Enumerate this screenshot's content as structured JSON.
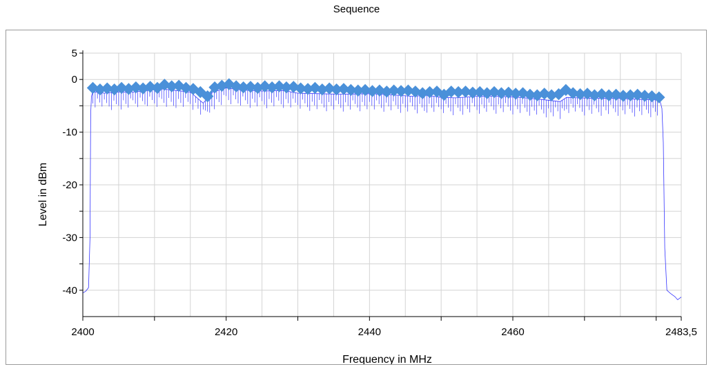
{
  "title": "Sequence",
  "colors": {
    "trace": "#3333ff",
    "marker": "#4a90d9",
    "grid": "#d3d3d3",
    "axis": "#000000",
    "frame": "#9a9a9a"
  },
  "chart_data": {
    "type": "line",
    "title": "Sequence",
    "xlabel": "Frequency in MHz",
    "ylabel": "Level in dBm",
    "xlim": [
      2400,
      2483.5
    ],
    "ylim": [
      -45,
      5
    ],
    "xticks": [
      2400,
      2420,
      2440,
      2460,
      2483.5
    ],
    "xtick_labels": [
      "2400",
      "2420",
      "2440",
      "2460",
      "2483,5"
    ],
    "yticks": [
      5,
      0,
      -10,
      -20,
      -30,
      -40
    ],
    "ytick_labels": [
      "5",
      "0",
      "-10",
      "-20",
      "-30",
      "-40"
    ],
    "grid": true,
    "series": [
      {
        "style": "thin-line",
        "x": [
          2400,
          2400.4,
          2400.8,
          2401.0,
          2401.1,
          2401.2,
          2401.4,
          2403.0,
          2405.0,
          2407.0,
          2409.0,
          2411.0,
          2413.0,
          2415.0,
          2416.8,
          2418.0,
          2420.0,
          2422.0,
          2425.0,
          2428.0,
          2430.0,
          2433.0,
          2436.0,
          2440.0,
          2443.0,
          2446.0,
          2448.0,
          2450.0,
          2452.0,
          2455.0,
          2458.0,
          2461.0,
          2464.0,
          2466.6,
          2467.5,
          2469.0,
          2472.0,
          2475.0,
          2478.0,
          2480.5,
          2480.8,
          2481.0,
          2481.2,
          2481.5,
          2482.0,
          2482.6,
          2483.0,
          2483.5
        ],
        "y": [
          -40.5,
          -40.2,
          -39.5,
          -30.0,
          -6.5,
          -3.2,
          -2.3,
          -2.6,
          -2.4,
          -2.4,
          -2.1,
          -1.8,
          -2.1,
          -2.4,
          -4.5,
          -2.5,
          -1.6,
          -2.0,
          -2.2,
          -2.1,
          -2.6,
          -2.7,
          -2.8,
          -2.7,
          -2.9,
          -3.2,
          -3.0,
          -3.4,
          -3.5,
          -3.2,
          -3.2,
          -3.4,
          -3.8,
          -4.2,
          -3.4,
          -3.5,
          -3.6,
          -3.6,
          -3.8,
          -3.9,
          -5.5,
          -12.0,
          -32.0,
          -40.0,
          -40.6,
          -41.2,
          -41.8,
          -41.3
        ]
      },
      {
        "style": "diamond-markers",
        "x": [
          2401.4,
          2402.4,
          2403.4,
          2404.4,
          2405.4,
          2406.4,
          2407.4,
          2408.4,
          2409.4,
          2410.4,
          2411.4,
          2412.4,
          2413.4,
          2414.4,
          2415.4,
          2416.4,
          2417.4,
          2418.4,
          2419.4,
          2420.4,
          2421.4,
          2422.4,
          2423.4,
          2424.4,
          2425.4,
          2426.4,
          2427.4,
          2428.4,
          2429.4,
          2430.4,
          2431.4,
          2432.4,
          2433.4,
          2434.4,
          2435.4,
          2436.4,
          2437.4,
          2438.4,
          2439.4,
          2440.4,
          2441.4,
          2442.4,
          2443.4,
          2444.4,
          2445.4,
          2446.4,
          2447.4,
          2448.4,
          2449.4,
          2450.4,
          2451.4,
          2452.4,
          2453.4,
          2454.4,
          2455.4,
          2456.4,
          2457.4,
          2458.4,
          2459.4,
          2460.4,
          2461.4,
          2462.4,
          2463.4,
          2464.4,
          2465.4,
          2466.4,
          2467.4,
          2468.4,
          2469.4,
          2470.4,
          2471.4,
          2472.4,
          2473.4,
          2474.4,
          2475.4,
          2476.4,
          2477.4,
          2478.4,
          2479.4,
          2480.4
        ],
        "y": [
          -1.6,
          -1.9,
          -1.7,
          -1.9,
          -1.6,
          -1.8,
          -1.5,
          -1.7,
          -1.4,
          -1.6,
          -1.0,
          -1.3,
          -1.2,
          -1.6,
          -1.8,
          -2.4,
          -3.2,
          -1.5,
          -1.2,
          -0.9,
          -1.3,
          -1.5,
          -1.4,
          -1.6,
          -1.3,
          -1.5,
          -1.3,
          -1.5,
          -1.4,
          -1.7,
          -1.8,
          -1.6,
          -1.9,
          -1.7,
          -1.9,
          -1.8,
          -2.0,
          -2.1,
          -2.0,
          -2.2,
          -2.1,
          -2.3,
          -2.1,
          -2.2,
          -2.1,
          -2.3,
          -2.6,
          -2.4,
          -2.3,
          -2.9,
          -2.3,
          -2.4,
          -2.3,
          -2.5,
          -2.4,
          -2.6,
          -2.4,
          -2.6,
          -2.5,
          -2.7,
          -2.6,
          -2.9,
          -3.0,
          -2.7,
          -3.0,
          -2.8,
          -2.0,
          -2.6,
          -2.8,
          -2.7,
          -3.0,
          -2.8,
          -3.0,
          -2.9,
          -3.1,
          -3.0,
          -2.9,
          -3.1,
          -3.2,
          -3.4
        ]
      }
    ]
  }
}
